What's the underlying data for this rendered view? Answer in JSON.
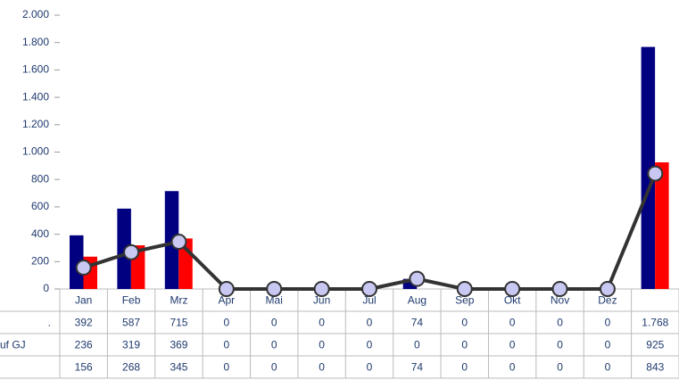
{
  "chart_data": {
    "type": "bar",
    "categories": [
      "Jan",
      "Feb",
      "Mrz",
      "Apr",
      "Mai",
      "Jun",
      "Jul",
      "Aug",
      "Sep",
      "Okt",
      "Nov",
      "Dez",
      null
    ],
    "series": [
      {
        "name": ".",
        "color": "#000080",
        "type": "bar",
        "values": [
          392,
          587,
          715,
          0,
          0,
          0,
          0,
          74,
          0,
          0,
          0,
          0,
          1768
        ],
        "value_labels": [
          "392",
          "587",
          "715",
          "0",
          "0",
          "0",
          "0",
          "74",
          "0",
          "0",
          "0",
          "0",
          "1.768"
        ]
      },
      {
        "name": "uf GJ",
        "color": "#ff0000",
        "type": "bar",
        "values": [
          236,
          319,
          369,
          0,
          0,
          0,
          0,
          0,
          0,
          0,
          0,
          0,
          925
        ],
        "value_labels": [
          "236",
          "319",
          "369",
          "0",
          "0",
          "0",
          "0",
          "0",
          "0",
          "0",
          "0",
          "0",
          "925"
        ]
      },
      {
        "color": "#333333",
        "type": "line",
        "values": [
          156,
          268,
          345,
          0,
          0,
          0,
          0,
          74,
          0,
          0,
          0,
          0,
          843
        ],
        "value_labels": [
          "156",
          "268",
          "345",
          "0",
          "0",
          "0",
          "0",
          "74",
          "0",
          "0",
          "0",
          "0",
          "843"
        ]
      }
    ],
    "ylim": [
      0,
      2000
    ],
    "yticks": [
      0,
      200,
      400,
      600,
      800,
      {
        "value": 1000,
        "label": "1.000"
      },
      {
        "value": 1200,
        "label": "1.200"
      },
      {
        "value": 1400,
        "label": "1.400"
      },
      {
        "value": 1600,
        "label": "1.600"
      },
      {
        "value": 1800,
        "label": "1.800"
      },
      {
        "value": 2000,
        "label": "2.000"
      }
    ],
    "grid": false
  }
}
